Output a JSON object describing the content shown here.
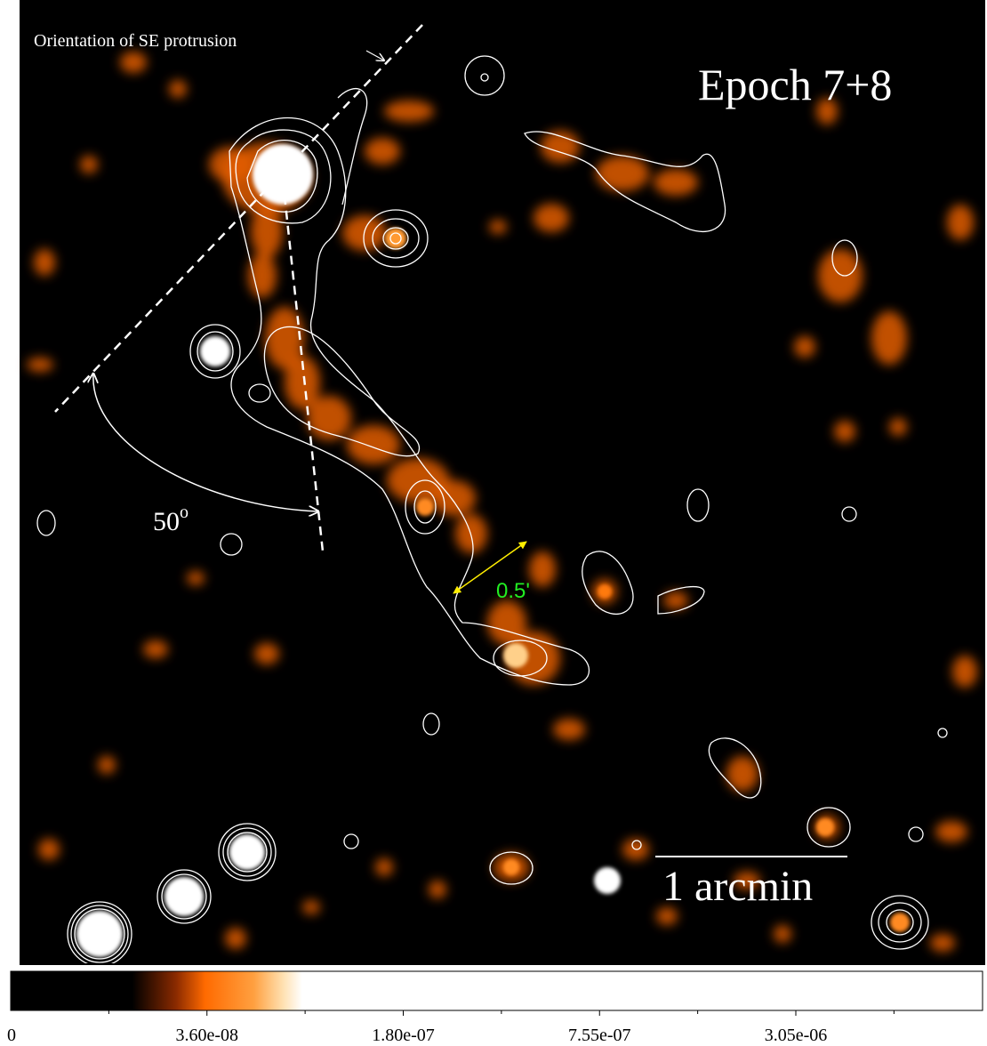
{
  "annotations": {
    "orientation": "Orientation of SE protrusion",
    "epoch": "Epoch 7+8",
    "angle": "50",
    "angle_unit": "o",
    "width": "0.5'",
    "scale": "1 arcmin"
  },
  "colorbar": {
    "labels": [
      "0",
      "3.60e-08",
      "1.80e-07",
      "7.55e-07",
      "3.05e-06"
    ]
  }
}
